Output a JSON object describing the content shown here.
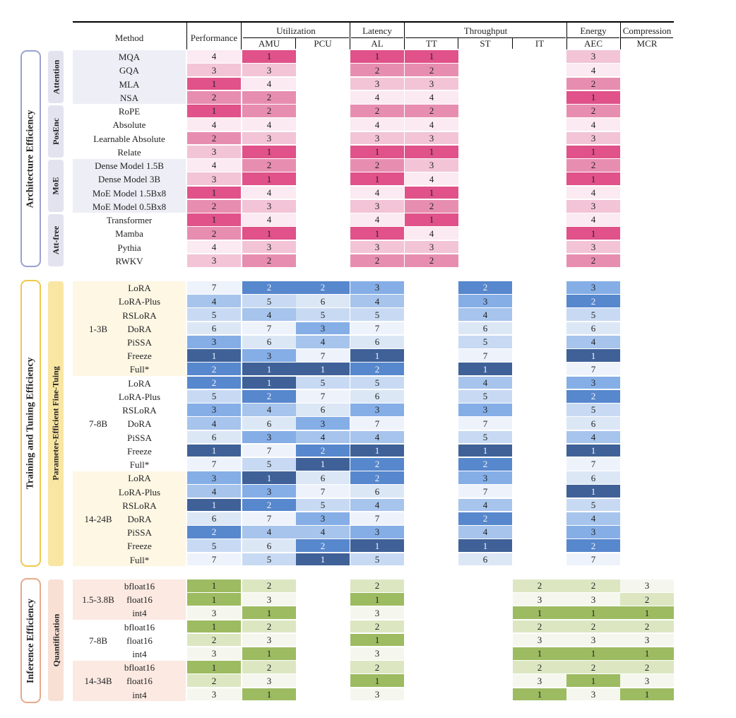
{
  "header": {
    "method": "Method",
    "performance": "Performance",
    "groups": [
      "Utilization",
      "Latency",
      "Throughput",
      "Energy",
      "Compression"
    ],
    "subcols": [
      "AMU",
      "PCU",
      "AL",
      "TT",
      "ST",
      "IT",
      "AEC",
      "MCR"
    ]
  },
  "colors": {
    "pink": [
      "#e05289",
      "#e78eb0",
      "#f2c4d6",
      "#fbeaf1"
    ],
    "blue": [
      "#3f6198",
      "#5787cd",
      "#85aee6",
      "#a6c4ec",
      "#c8daf3",
      "#dce7f6",
      "#eef3fb"
    ],
    "green": [
      "#9dbb61",
      "#dce7c2",
      "#f5f7ef"
    ]
  },
  "sections": [
    {
      "title": "Architecture Efficiency",
      "palette": "pink",
      "groups": [
        {
          "label": "Attention",
          "rows": [
            {
              "method": "MQA",
              "values": [
                4,
                1,
                null,
                1,
                1,
                null,
                null,
                3,
                null
              ]
            },
            {
              "method": "GQA",
              "values": [
                3,
                3,
                null,
                2,
                2,
                null,
                null,
                4,
                null
              ]
            },
            {
              "method": "MLA",
              "values": [
                1,
                4,
                null,
                3,
                3,
                null,
                null,
                2,
                null
              ]
            },
            {
              "method": "NSA",
              "values": [
                2,
                2,
                null,
                4,
                4,
                null,
                null,
                1,
                null
              ]
            }
          ]
        },
        {
          "label": "PosEnc",
          "rows": [
            {
              "method": "RoPE",
              "values": [
                1,
                2,
                null,
                2,
                2,
                null,
                null,
                2,
                null
              ]
            },
            {
              "method": "Absolute",
              "values": [
                4,
                4,
                null,
                4,
                4,
                null,
                null,
                4,
                null
              ]
            },
            {
              "method": "Learnable Absolute",
              "values": [
                2,
                3,
                null,
                3,
                3,
                null,
                null,
                3,
                null
              ]
            },
            {
              "method": "Relate",
              "values": [
                3,
                1,
                null,
                1,
                1,
                null,
                null,
                1,
                null
              ]
            }
          ]
        },
        {
          "label": "MoE",
          "rows": [
            {
              "method": "Dense Model 1.5B",
              "values": [
                4,
                2,
                null,
                2,
                3,
                null,
                null,
                2,
                null
              ]
            },
            {
              "method": "Dense Model 3B",
              "values": [
                3,
                1,
                null,
                1,
                4,
                null,
                null,
                1,
                null
              ]
            },
            {
              "method": "MoE Model 1.5Bx8",
              "values": [
                1,
                4,
                null,
                4,
                1,
                null,
                null,
                4,
                null
              ]
            },
            {
              "method": "MoE Model 0.5Bx8",
              "values": [
                2,
                3,
                null,
                3,
                2,
                null,
                null,
                3,
                null
              ]
            }
          ]
        },
        {
          "label": "Att-free",
          "rows": [
            {
              "method": "Transformer",
              "values": [
                1,
                4,
                null,
                4,
                1,
                null,
                null,
                4,
                null
              ]
            },
            {
              "method": "Mamba",
              "values": [
                2,
                1,
                null,
                1,
                4,
                null,
                null,
                1,
                null
              ]
            },
            {
              "method": "Pythia",
              "values": [
                4,
                3,
                null,
                3,
                3,
                null,
                null,
                3,
                null
              ]
            },
            {
              "method": "RWKV",
              "values": [
                3,
                2,
                null,
                2,
                2,
                null,
                null,
                2,
                null
              ]
            }
          ]
        }
      ]
    },
    {
      "title": "Training and Tuning Efficiency",
      "subtitle": "Parameter-Efficient Fine-Tuing",
      "palette": "blue",
      "groups": [
        {
          "label": "1-3B",
          "rows": [
            {
              "method": "LoRA",
              "values": [
                7,
                2,
                2,
                3,
                null,
                2,
                null,
                3,
                null
              ]
            },
            {
              "method": "LoRA-Plus",
              "values": [
                4,
                5,
                6,
                4,
                null,
                3,
                null,
                2,
                null
              ]
            },
            {
              "method": "RSLoRA",
              "values": [
                5,
                4,
                5,
                5,
                null,
                4,
                null,
                5,
                null
              ]
            },
            {
              "method": "DoRA",
              "values": [
                6,
                7,
                3,
                7,
                null,
                6,
                null,
                6,
                null
              ]
            },
            {
              "method": "PiSSA",
              "values": [
                3,
                6,
                4,
                6,
                null,
                5,
                null,
                4,
                null
              ]
            },
            {
              "method": "Freeze",
              "values": [
                1,
                3,
                7,
                1,
                null,
                7,
                null,
                1,
                null
              ]
            },
            {
              "method": "Full*",
              "values": [
                2,
                1,
                1,
                2,
                null,
                1,
                null,
                7,
                null
              ]
            }
          ]
        },
        {
          "label": "7-8B",
          "rows": [
            {
              "method": "LoRA",
              "values": [
                2,
                1,
                5,
                5,
                null,
                4,
                null,
                3,
                null
              ]
            },
            {
              "method": "LoRA-Plus",
              "values": [
                5,
                2,
                7,
                6,
                null,
                5,
                null,
                2,
                null
              ]
            },
            {
              "method": "RSLoRA",
              "values": [
                3,
                4,
                6,
                3,
                null,
                3,
                null,
                5,
                null
              ]
            },
            {
              "method": "DoRA",
              "values": [
                4,
                6,
                3,
                7,
                null,
                7,
                null,
                6,
                null
              ]
            },
            {
              "method": "PiSSA",
              "values": [
                6,
                3,
                4,
                4,
                null,
                5,
                null,
                4,
                null
              ]
            },
            {
              "method": "Freeze",
              "values": [
                1,
                7,
                2,
                1,
                null,
                1,
                null,
                1,
                null
              ]
            },
            {
              "method": "Full*",
              "values": [
                7,
                5,
                1,
                2,
                null,
                2,
                null,
                7,
                null
              ]
            }
          ]
        },
        {
          "label": "14-24B",
          "rows": [
            {
              "method": "LoRA",
              "values": [
                3,
                1,
                6,
                2,
                null,
                3,
                null,
                6,
                null
              ]
            },
            {
              "method": "LoRA-Plus",
              "values": [
                4,
                3,
                7,
                6,
                null,
                7,
                null,
                1,
                null
              ]
            },
            {
              "method": "RSLoRA",
              "values": [
                1,
                2,
                5,
                4,
                null,
                4,
                null,
                5,
                null
              ]
            },
            {
              "method": "DoRA",
              "values": [
                6,
                7,
                3,
                7,
                null,
                2,
                null,
                4,
                null
              ]
            },
            {
              "method": "PiSSA",
              "values": [
                2,
                4,
                4,
                3,
                null,
                4,
                null,
                3,
                null
              ]
            },
            {
              "method": "Freeze",
              "values": [
                5,
                6,
                2,
                1,
                null,
                1,
                null,
                2,
                null
              ]
            },
            {
              "method": "Full*",
              "values": [
                7,
                5,
                1,
                5,
                null,
                6,
                null,
                7,
                null
              ]
            }
          ]
        }
      ]
    },
    {
      "title": "Inference Efficiency",
      "subtitle": "Quantification",
      "palette": "green",
      "groups": [
        {
          "label": "1.5-3.8B",
          "rows": [
            {
              "method": "bfloat16",
              "values": [
                1,
                2,
                null,
                2,
                null,
                null,
                2,
                2,
                3
              ]
            },
            {
              "method": "float16",
              "values": [
                1,
                3,
                null,
                1,
                null,
                null,
                3,
                3,
                2
              ]
            },
            {
              "method": "int4",
              "values": [
                3,
                1,
                null,
                3,
                null,
                null,
                1,
                1,
                1
              ]
            }
          ]
        },
        {
          "label": "7-8B",
          "rows": [
            {
              "method": "bfloat16",
              "values": [
                1,
                2,
                null,
                2,
                null,
                null,
                2,
                2,
                2
              ]
            },
            {
              "method": "float16",
              "values": [
                2,
                3,
                null,
                1,
                null,
                null,
                3,
                3,
                3
              ]
            },
            {
              "method": "int4",
              "values": [
                3,
                1,
                null,
                3,
                null,
                null,
                1,
                1,
                1
              ]
            }
          ]
        },
        {
          "label": "14-34B",
          "rows": [
            {
              "method": "bfloat16",
              "values": [
                1,
                2,
                null,
                2,
                null,
                null,
                2,
                2,
                2
              ]
            },
            {
              "method": "float16",
              "values": [
                2,
                3,
                null,
                1,
                null,
                null,
                3,
                1,
                3
              ]
            },
            {
              "method": "int4",
              "values": [
                3,
                1,
                null,
                3,
                null,
                null,
                1,
                3,
                1
              ]
            }
          ]
        }
      ]
    }
  ]
}
